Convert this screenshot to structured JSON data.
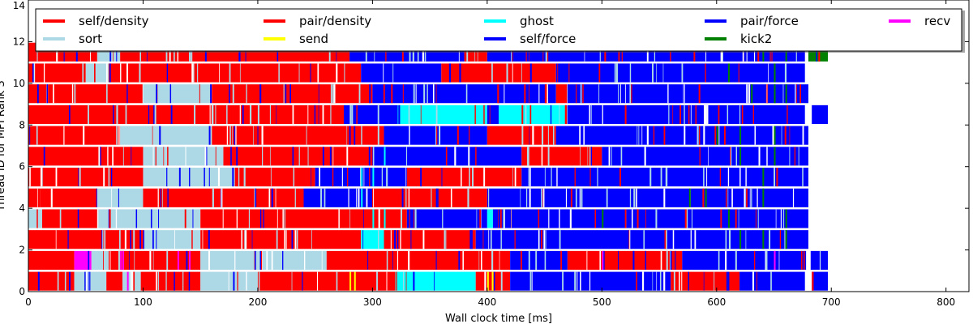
{
  "chart_data": {
    "type": "bar",
    "subtype": "task-timeline",
    "xlabel": "Wall clock time [ms]",
    "ylabel": "Thread ID for MPI Rank 3",
    "xlim": [
      0,
      820
    ],
    "ylim": [
      0,
      14
    ],
    "xticks": [
      0,
      100,
      200,
      300,
      400,
      500,
      600,
      700,
      800
    ],
    "yticks": [
      0,
      2,
      4,
      6,
      8,
      10,
      12,
      14
    ],
    "grid": false,
    "legend_position": "top",
    "legend": [
      {
        "name": "self/density",
        "color": "#ff0000"
      },
      {
        "name": "sort",
        "color": "#add8e6"
      },
      {
        "name": "pair/density",
        "color": "#ff0000"
      },
      {
        "name": "send",
        "color": "#ffff00"
      },
      {
        "name": "ghost",
        "color": "#00ffff"
      },
      {
        "name": "self/force",
        "color": "#0000ff"
      },
      {
        "name": "pair/force",
        "color": "#0000ff"
      },
      {
        "name": "kick2",
        "color": "#008000"
      },
      {
        "name": "recv",
        "color": "#ff00ff"
      }
    ],
    "threads": [
      {
        "thread": 0,
        "start_time": 0,
        "end_time": 697,
        "segments": [
          [
            0,
            40,
            "#ff0000"
          ],
          [
            40,
            68,
            "#add8e6"
          ],
          [
            68,
            82,
            "#ff0000"
          ],
          [
            82,
            98,
            "#add8e6"
          ],
          [
            98,
            150,
            "#ff0000"
          ],
          [
            150,
            200,
            "#add8e6"
          ],
          [
            200,
            320,
            "#ff0000"
          ],
          [
            320,
            390,
            "#00ffff"
          ],
          [
            390,
            420,
            "#ff0000"
          ],
          [
            420,
            560,
            "#0000ff"
          ],
          [
            560,
            620,
            "#ff0000"
          ],
          [
            620,
            677,
            "#0000ff"
          ],
          [
            683,
            697,
            "#0000ff"
          ]
        ],
        "accents": [
          [
            280,
            "#ffff00"
          ],
          [
            284,
            "#ffff00"
          ],
          [
            400,
            "#ffff00"
          ],
          [
            404,
            "#ffff00"
          ],
          [
            86,
            "#ff00ff"
          ]
        ]
      },
      {
        "thread": 1,
        "start_time": 0,
        "end_time": 697,
        "segments": [
          [
            0,
            40,
            "#ff0000"
          ],
          [
            40,
            55,
            "#ff00ff"
          ],
          [
            55,
            70,
            "#add8e6"
          ],
          [
            70,
            150,
            "#ff0000"
          ],
          [
            150,
            260,
            "#add8e6"
          ],
          [
            260,
            420,
            "#ff0000"
          ],
          [
            420,
            470,
            "#0000ff"
          ],
          [
            470,
            570,
            "#ff0000"
          ],
          [
            570,
            678,
            "#0000ff"
          ],
          [
            682,
            697,
            "#0000ff"
          ]
        ],
        "accents": [
          [
            80,
            "#ff00ff"
          ],
          [
            82,
            "#ff00ff"
          ],
          [
            130,
            "#ff00ff"
          ],
          [
            140,
            "#ff00ff"
          ],
          [
            500,
            "#ff00ff"
          ],
          [
            650,
            "#ff00ff"
          ]
        ]
      },
      {
        "thread": 2,
        "start_time": 0,
        "end_time": 682,
        "segments": [
          [
            0,
            100,
            "#ff0000"
          ],
          [
            100,
            150,
            "#add8e6"
          ],
          [
            150,
            290,
            "#ff0000"
          ],
          [
            290,
            310,
            "#00ffff"
          ],
          [
            310,
            390,
            "#ff0000"
          ],
          [
            390,
            680,
            "#0000ff"
          ]
        ],
        "accents": [
          [
            620,
            "#008000"
          ],
          [
            640,
            "#008000"
          ],
          [
            660,
            "#008000"
          ]
        ]
      },
      {
        "thread": 3,
        "start_time": 0,
        "end_time": 682,
        "segments": [
          [
            0,
            12,
            "#add8e6"
          ],
          [
            12,
            60,
            "#ff0000"
          ],
          [
            60,
            150,
            "#add8e6"
          ],
          [
            150,
            330,
            "#ff0000"
          ],
          [
            330,
            400,
            "#0000ff"
          ],
          [
            400,
            405,
            "#00ffff"
          ],
          [
            405,
            680,
            "#0000ff"
          ]
        ],
        "accents": [
          [
            300,
            "#00ffff"
          ],
          [
            310,
            "#00ffff"
          ],
          [
            500,
            "#008000"
          ],
          [
            610,
            "#008000"
          ],
          [
            660,
            "#008000"
          ]
        ]
      },
      {
        "thread": 4,
        "start_time": 0,
        "end_time": 680,
        "segments": [
          [
            0,
            10,
            "#ff0000"
          ],
          [
            10,
            60,
            "#ff0000"
          ],
          [
            60,
            100,
            "#add8e6"
          ],
          [
            100,
            240,
            "#ff0000"
          ],
          [
            240,
            300,
            "#0000ff"
          ],
          [
            300,
            400,
            "#ff0000"
          ],
          [
            400,
            680,
            "#0000ff"
          ]
        ],
        "accents": [
          [
            290,
            "#00ffff"
          ],
          [
            576,
            "#008000"
          ],
          [
            590,
            "#008000"
          ],
          [
            640,
            "#008000"
          ]
        ]
      },
      {
        "thread": 5,
        "start_time": 0,
        "end_time": 680,
        "segments": [
          [
            0,
            100,
            "#ff0000"
          ],
          [
            100,
            180,
            "#add8e6"
          ],
          [
            180,
            250,
            "#ff0000"
          ],
          [
            250,
            330,
            "#0000ff"
          ],
          [
            330,
            430,
            "#ff0000"
          ],
          [
            430,
            680,
            "#0000ff"
          ]
        ],
        "accents": [
          [
            290,
            "#00ffff"
          ],
          [
            300,
            "#00ffff"
          ],
          [
            640,
            "#008000"
          ]
        ]
      },
      {
        "thread": 6,
        "start_time": 0,
        "end_time": 682,
        "segments": [
          [
            0,
            100,
            "#ff0000"
          ],
          [
            100,
            170,
            "#add8e6"
          ],
          [
            170,
            300,
            "#ff0000"
          ],
          [
            300,
            430,
            "#0000ff"
          ],
          [
            430,
            500,
            "#ff0000"
          ],
          [
            500,
            680,
            "#0000ff"
          ]
        ],
        "accents": [
          [
            310,
            "#00ffff"
          ],
          [
            620,
            "#008000"
          ],
          [
            650,
            "#008000"
          ]
        ]
      },
      {
        "thread": 7,
        "start_time": 0,
        "end_time": 682,
        "segments": [
          [
            0,
            80,
            "#ff0000"
          ],
          [
            80,
            160,
            "#add8e6"
          ],
          [
            160,
            310,
            "#ff0000"
          ],
          [
            310,
            400,
            "#0000ff"
          ],
          [
            400,
            460,
            "#ff0000"
          ],
          [
            460,
            680,
            "#0000ff"
          ]
        ],
        "accents": [
          [
            600,
            "#008000"
          ],
          [
            620,
            "#008000"
          ],
          [
            650,
            "#008000"
          ]
        ]
      },
      {
        "thread": 8,
        "start_time": 0,
        "end_time": 697,
        "segments": [
          [
            0,
            275,
            "#ff0000"
          ],
          [
            275,
            322,
            "#0000ff"
          ],
          [
            322,
            400,
            "#00ffff"
          ],
          [
            400,
            410,
            "#0000ff"
          ],
          [
            410,
            470,
            "#00ffff"
          ],
          [
            470,
            677,
            "#0000ff"
          ],
          [
            683,
            697,
            "#0000ff"
          ]
        ],
        "accents": [
          [
            110,
            "#add8e6"
          ],
          [
            160,
            "#add8e6"
          ],
          [
            200,
            "#add8e6"
          ],
          [
            430,
            "#ff0000"
          ],
          [
            520,
            "#ff0000"
          ]
        ]
      },
      {
        "thread": 9,
        "start_time": 0,
        "end_time": 680,
        "segments": [
          [
            0,
            100,
            "#ff0000"
          ],
          [
            100,
            160,
            "#add8e6"
          ],
          [
            160,
            300,
            "#ff0000"
          ],
          [
            300,
            460,
            "#0000ff"
          ],
          [
            460,
            470,
            "#ff0000"
          ],
          [
            470,
            680,
            "#0000ff"
          ]
        ],
        "accents": [
          [
            630,
            "#008000"
          ],
          [
            650,
            "#008000"
          ],
          [
            660,
            "#008000"
          ]
        ]
      },
      {
        "thread": 10,
        "start_time": 0,
        "end_time": 680,
        "segments": [
          [
            0,
            50,
            "#ff0000"
          ],
          [
            50,
            70,
            "#add8e6"
          ],
          [
            70,
            290,
            "#ff0000"
          ],
          [
            290,
            360,
            "#0000ff"
          ],
          [
            360,
            460,
            "#ff0000"
          ],
          [
            460,
            677,
            "#0000ff"
          ]
        ],
        "accents": [
          [
            610,
            "#008000"
          ],
          [
            650,
            "#008000"
          ]
        ]
      },
      {
        "thread": 11,
        "start_time": 0,
        "end_time": 697,
        "segments": [
          [
            0,
            60,
            "#ff0000"
          ],
          [
            60,
            80,
            "#add8e6"
          ],
          [
            80,
            280,
            "#ff0000"
          ],
          [
            280,
            380,
            "#0000ff"
          ],
          [
            380,
            400,
            "#ff0000"
          ],
          [
            400,
            677,
            "#0000ff"
          ],
          [
            680,
            697,
            "#008000"
          ]
        ],
        "accents": [
          [
            640,
            "#008000"
          ],
          [
            660,
            "#008000"
          ]
        ]
      }
    ]
  }
}
